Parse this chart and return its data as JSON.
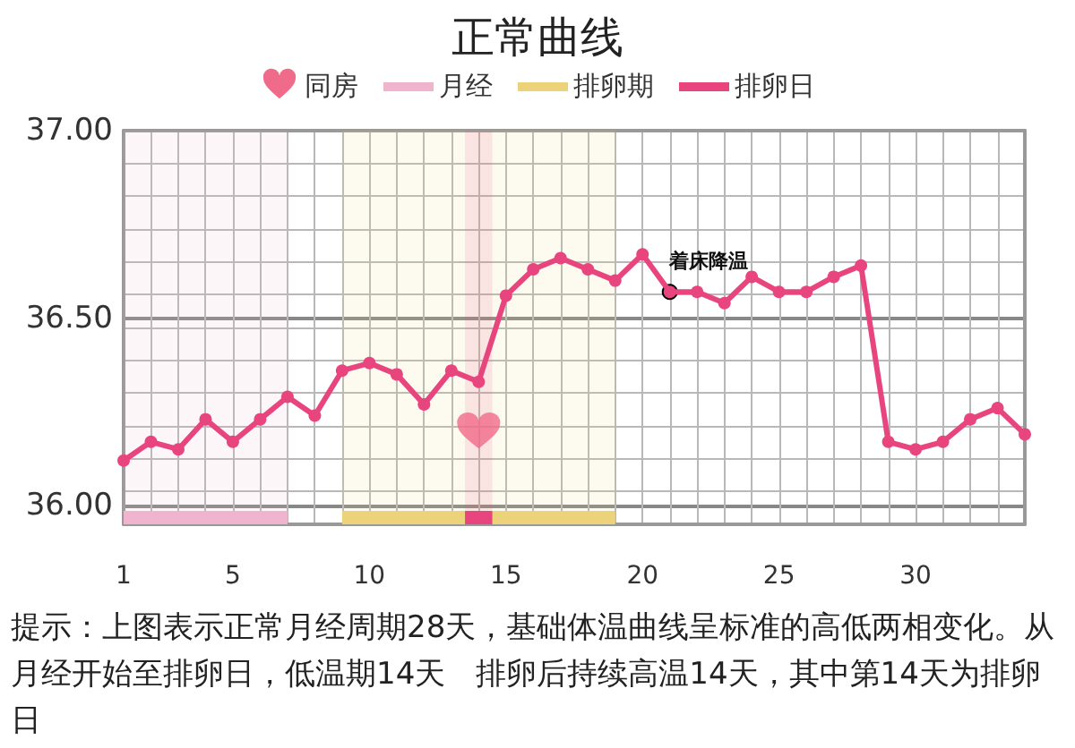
{
  "chart_data": {
    "type": "line",
    "title": "正常曲线",
    "x": [
      1,
      2,
      3,
      4,
      5,
      6,
      7,
      8,
      9,
      10,
      11,
      12,
      13,
      14,
      15,
      16,
      17,
      18,
      19,
      20,
      21,
      22,
      23,
      24,
      25,
      26,
      27,
      28,
      29,
      30,
      31,
      32,
      33,
      34
    ],
    "series": [
      {
        "values": [
          36.12,
          36.17,
          36.15,
          36.23,
          36.17,
          36.23,
          36.29,
          36.24,
          36.36,
          36.38,
          36.35,
          36.27,
          36.36,
          36.33,
          36.56,
          36.63,
          36.66,
          36.63,
          36.6,
          36.67,
          36.57,
          36.57,
          36.54,
          36.61,
          36.57,
          36.57,
          36.61,
          36.64,
          36.17,
          36.15,
          36.17,
          36.23,
          36.26,
          36.19
        ],
        "color": "#e8457f"
      },
      {
        "name": "同房",
        "type": "scatter",
        "x": [
          14
        ],
        "values": [
          36.2
        ],
        "color": "#f06a8a"
      }
    ],
    "bands": [
      {
        "axis": "x",
        "from": 1,
        "to": 7,
        "label": "月经",
        "color": "#f0b4cf"
      },
      {
        "axis": "x",
        "from": 9,
        "to": 19,
        "label": "排卵期",
        "color": "#ecd37a"
      },
      {
        "axis": "x",
        "from": 13.5,
        "to": 14.5,
        "label": "排卵日",
        "color": "#e8457f"
      }
    ],
    "annotations": [
      {
        "text": "着床降温",
        "x": 21,
        "y": 36.57
      },
      "提示：上图表示正常月经周期28天，基础体温曲线呈标准的高低两相变化。从月经开始至排卵日，低温期14天　排卵后持续高温14天，其中第14天为排卵日"
    ],
    "xlim": [
      1,
      34
    ],
    "xticks": [
      1,
      5,
      10,
      15,
      20,
      25,
      30
    ],
    "ylim": [
      35.95,
      37
    ],
    "yticks": [
      {
        "value": 36,
        "label": "36.00"
      },
      {
        "value": 36.5,
        "label": "36.50"
      },
      {
        "value": 37,
        "label": "37.00"
      }
    ],
    "grid": true,
    "legend": "top",
    "marker": "circle",
    "line_style": "solid"
  }
}
